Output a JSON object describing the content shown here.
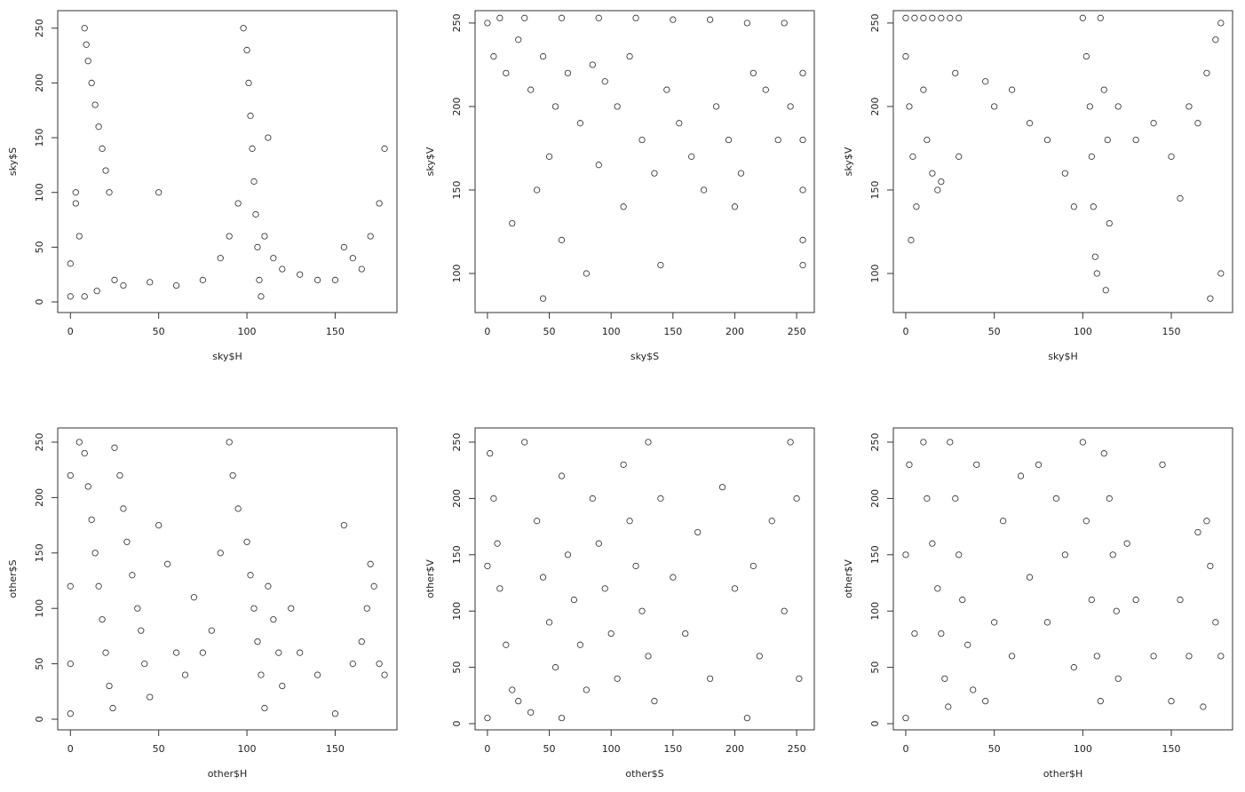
{
  "chart_data": [
    {
      "type": "scatter",
      "xlabel": "sky$H",
      "ylabel": "sky$S",
      "color": "#000000",
      "xlim": [
        -7.2,
        185
      ],
      "ylim": [
        -9.7,
        266
      ],
      "xticks": [
        0,
        50,
        100,
        150
      ],
      "yticks": [
        0,
        50,
        100,
        150,
        200,
        250
      ],
      "x": [
        8,
        9,
        10,
        12,
        14,
        16,
        18,
        20,
        22,
        5,
        3,
        0,
        0,
        25,
        30,
        45,
        60,
        75,
        85,
        90,
        95,
        98,
        100,
        101,
        102,
        103,
        104,
        105,
        106,
        107,
        108,
        110,
        112,
        115,
        120,
        130,
        140,
        150,
        155,
        160,
        165,
        170,
        175,
        178,
        50,
        3,
        15,
        8
      ],
      "y": [
        250,
        235,
        220,
        200,
        180,
        160,
        140,
        120,
        100,
        60,
        90,
        5,
        35,
        20,
        15,
        18,
        15,
        20,
        40,
        60,
        90,
        250,
        230,
        200,
        170,
        140,
        110,
        80,
        50,
        20,
        5,
        60,
        150,
        40,
        30,
        25,
        20,
        20,
        50,
        40,
        30,
        60,
        90,
        140,
        100,
        100,
        10,
        5
      ]
    },
    {
      "type": "scatter",
      "xlabel": "sky$S",
      "ylabel": "sky$V",
      "color": "#000000",
      "xlim": [
        -10,
        264.3
      ],
      "ylim": [
        76.6,
        257.4
      ],
      "xticks": [
        0,
        50,
        100,
        150,
        200,
        250
      ],
      "yticks": [
        100,
        150,
        200,
        250
      ],
      "x": [
        0,
        10,
        30,
        60,
        90,
        120,
        150,
        180,
        210,
        240,
        5,
        15,
        25,
        35,
        45,
        55,
        65,
        75,
        85,
        95,
        105,
        115,
        125,
        135,
        145,
        155,
        165,
        175,
        185,
        195,
        205,
        215,
        225,
        235,
        245,
        255,
        255,
        255,
        255,
        255,
        20,
        40,
        60,
        80,
        110,
        45,
        140,
        50,
        90,
        200
      ],
      "y": [
        250,
        253,
        253,
        253,
        253,
        253,
        252,
        252,
        250,
        250,
        230,
        220,
        240,
        210,
        230,
        200,
        220,
        190,
        225,
        215,
        200,
        230,
        180,
        160,
        210,
        190,
        170,
        150,
        200,
        180,
        160,
        220,
        210,
        180,
        200,
        220,
        180,
        150,
        120,
        105,
        130,
        150,
        120,
        100,
        140,
        85,
        105,
        170,
        165,
        140
      ]
    },
    {
      "type": "scatter",
      "xlabel": "sky$H",
      "ylabel": "sky$V",
      "color": "#000000",
      "xlim": [
        -7,
        184.6
      ],
      "ylim": [
        76.6,
        257.4
      ],
      "xticks": [
        0,
        50,
        100,
        150
      ],
      "yticks": [
        100,
        150,
        200,
        250
      ],
      "x": [
        0,
        5,
        10,
        15,
        20,
        25,
        30,
        0,
        2,
        4,
        6,
        3,
        10,
        12,
        15,
        18,
        20,
        28,
        30,
        45,
        50,
        60,
        70,
        80,
        90,
        95,
        100,
        102,
        104,
        105,
        106,
        107,
        108,
        110,
        112,
        114,
        115,
        113,
        120,
        130,
        140,
        150,
        155,
        160,
        165,
        170,
        175,
        178,
        172,
        178
      ],
      "y": [
        253,
        253,
        253,
        253,
        253,
        253,
        253,
        230,
        200,
        170,
        140,
        120,
        210,
        180,
        160,
        150,
        155,
        220,
        170,
        215,
        200,
        210,
        190,
        180,
        160,
        140,
        253,
        230,
        200,
        170,
        140,
        110,
        100,
        253,
        210,
        180,
        130,
        90,
        200,
        180,
        190,
        170,
        145,
        200,
        190,
        220,
        240,
        250,
        85,
        100
      ]
    },
    {
      "type": "scatter",
      "xlabel": "other$H",
      "ylabel": "other$S",
      "color": "#000000",
      "xlim": [
        -7.2,
        185
      ],
      "ylim": [
        -9.6,
        262.8
      ],
      "xticks": [
        0,
        50,
        100,
        150
      ],
      "yticks": [
        0,
        50,
        100,
        150,
        200,
        250
      ],
      "x": [
        5,
        8,
        10,
        12,
        14,
        16,
        18,
        20,
        22,
        24,
        25,
        28,
        30,
        32,
        35,
        38,
        40,
        42,
        45,
        0,
        0,
        0,
        0,
        50,
        55,
        60,
        65,
        70,
        75,
        80,
        85,
        90,
        92,
        95,
        100,
        102,
        104,
        106,
        108,
        110,
        112,
        115,
        118,
        120,
        125,
        130,
        140,
        150,
        155,
        160,
        165,
        168,
        170,
        172,
        175,
        178
      ],
      "y": [
        250,
        240,
        210,
        180,
        150,
        120,
        90,
        60,
        30,
        10,
        245,
        220,
        190,
        160,
        130,
        100,
        80,
        50,
        20,
        5,
        50,
        120,
        220,
        175,
        140,
        60,
        40,
        110,
        60,
        80,
        150,
        250,
        220,
        190,
        160,
        130,
        100,
        70,
        40,
        10,
        120,
        90,
        60,
        30,
        100,
        60,
        40,
        5,
        175,
        50,
        70,
        100,
        140,
        120,
        50,
        40
      ]
    },
    {
      "type": "scatter",
      "xlabel": "other$S",
      "ylabel": "other$V",
      "color": "#000000",
      "xlim": [
        -10,
        264.3
      ],
      "ylim": [
        -5.5,
        262.6
      ],
      "xticks": [
        0,
        50,
        100,
        150,
        200,
        250
      ],
      "yticks": [
        0,
        50,
        100,
        150,
        200,
        250
      ],
      "x": [
        0,
        0,
        2,
        5,
        8,
        10,
        15,
        20,
        25,
        30,
        35,
        40,
        45,
        50,
        55,
        60,
        65,
        70,
        75,
        80,
        85,
        90,
        95,
        100,
        105,
        110,
        115,
        120,
        125,
        130,
        135,
        140,
        150,
        160,
        170,
        180,
        190,
        200,
        210,
        215,
        220,
        230,
        240,
        245,
        250,
        252,
        130,
        60
      ],
      "y": [
        5,
        140,
        240,
        200,
        160,
        120,
        70,
        30,
        20,
        250,
        10,
        180,
        130,
        90,
        50,
        220,
        150,
        110,
        70,
        30,
        200,
        160,
        120,
        80,
        40,
        230,
        180,
        140,
        100,
        60,
        20,
        200,
        130,
        80,
        170,
        40,
        210,
        120,
        5,
        140,
        60,
        180,
        100,
        250,
        200,
        40,
        250,
        5
      ]
    },
    {
      "type": "scatter",
      "xlabel": "other$H",
      "ylabel": "other$V",
      "color": "#000000",
      "xlim": [
        -7,
        184.6
      ],
      "ylim": [
        -5.5,
        262.6
      ],
      "xticks": [
        0,
        50,
        100,
        150
      ],
      "yticks": [
        0,
        50,
        100,
        150,
        200,
        250
      ],
      "x": [
        0,
        0,
        2,
        5,
        10,
        12,
        15,
        18,
        20,
        22,
        24,
        25,
        28,
        30,
        32,
        35,
        38,
        40,
        45,
        50,
        55,
        60,
        65,
        70,
        75,
        80,
        85,
        90,
        95,
        100,
        102,
        105,
        108,
        110,
        112,
        115,
        117,
        119,
        120,
        125,
        130,
        140,
        145,
        150,
        155,
        160,
        165,
        170,
        172,
        175,
        178,
        168
      ],
      "y": [
        5,
        150,
        230,
        80,
        250,
        200,
        160,
        120,
        80,
        40,
        15,
        250,
        200,
        150,
        110,
        70,
        30,
        230,
        20,
        90,
        180,
        60,
        220,
        130,
        230,
        90,
        200,
        150,
        50,
        250,
        180,
        110,
        60,
        20,
        240,
        200,
        150,
        100,
        40,
        160,
        110,
        60,
        230,
        20,
        110,
        60,
        170,
        180,
        140,
        90,
        60,
        15
      ]
    }
  ]
}
